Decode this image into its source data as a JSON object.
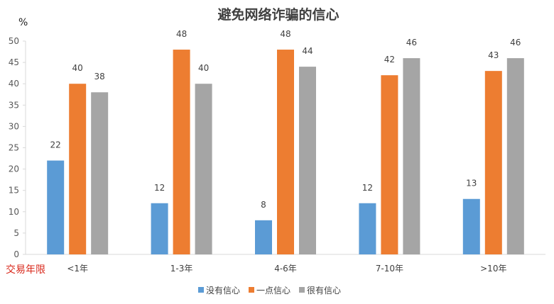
{
  "chart_data": {
    "type": "bar",
    "title": "避免网络诈骗的信心",
    "ylabel": "%",
    "xlabel": "交易年限",
    "categories": [
      "<1年",
      "1-3年",
      "4-6年",
      "7-10年",
      ">10年"
    ],
    "series": [
      {
        "name": "没有信心",
        "color": "#5b9bd5",
        "values": [
          22,
          12,
          8,
          12,
          13
        ]
      },
      {
        "name": "一点信心",
        "color": "#ed7d31",
        "values": [
          40,
          48,
          48,
          42,
          43
        ]
      },
      {
        "name": "很有信心",
        "color": "#a5a5a5",
        "values": [
          38,
          40,
          44,
          46,
          46
        ]
      }
    ],
    "ylim": [
      0,
      50
    ],
    "yticks": [
      0,
      5,
      10,
      15,
      20,
      25,
      30,
      35,
      40,
      45,
      50
    ],
    "grid": false,
    "legend_position": "bottom"
  }
}
